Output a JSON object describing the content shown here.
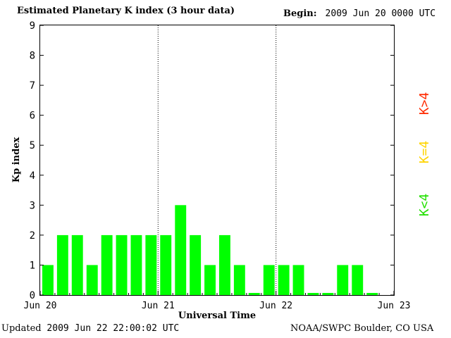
{
  "header": {
    "title": "Estimated Planetary K index (3 hour data)",
    "begin_label": "Begin:",
    "begin_value": "2009 Jun 20 0000 UTC"
  },
  "footer": {
    "updated_label": "Updated",
    "updated_value": "2009 Jun 22 22:00:02 UTC",
    "org": "NOAA/SWPC Boulder, CO USA"
  },
  "legend": [
    {
      "label": "K>4",
      "color": "#ff2a00"
    },
    {
      "label": "K=4",
      "color": "#ffd400"
    },
    {
      "label": "K<4",
      "color": "#22e000"
    }
  ],
  "colors": {
    "bar_low": "#00ff00",
    "bar_mid": "#ffd400",
    "bar_high": "#ff2a00"
  },
  "chart_data": {
    "type": "bar",
    "title": "Estimated Planetary K index (3 hour data)",
    "xlabel": "Universal Time",
    "ylabel": "Kp index",
    "ylim": [
      0,
      9
    ],
    "yticks": [
      "0",
      "1",
      "2",
      "3",
      "4",
      "5",
      "6",
      "7",
      "8",
      "9"
    ],
    "xticks": [
      "Jun 20",
      "Jun 21",
      "Jun 22",
      "Jun 23"
    ],
    "grid": false,
    "day_separators": true,
    "interval_hours": 3,
    "values": [
      1,
      2,
      2,
      1,
      2,
      2,
      2,
      2,
      2,
      3,
      2,
      1,
      2,
      1,
      0,
      1,
      1,
      1,
      0,
      0,
      1,
      1,
      0
    ]
  }
}
